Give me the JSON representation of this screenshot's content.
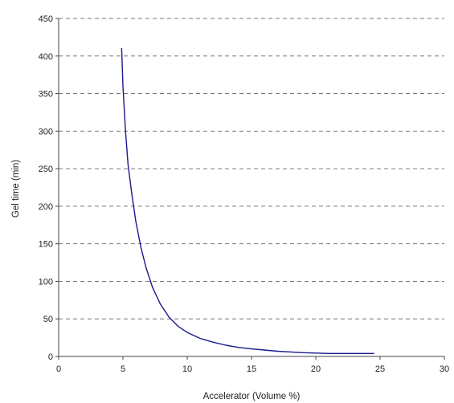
{
  "chart_data": {
    "type": "line",
    "title": "",
    "xlabel": "Accelerator  (Volume %)",
    "ylabel": "Gel time  (min)",
    "xlim": [
      0,
      30
    ],
    "ylim": [
      0,
      450
    ],
    "x_ticks": [
      0,
      5,
      10,
      15,
      20,
      25,
      30
    ],
    "y_ticks": [
      0,
      50,
      100,
      150,
      200,
      250,
      300,
      350,
      400,
      450
    ],
    "x_tick_labels": [
      "0",
      "5",
      "10",
      "15",
      "20",
      "25",
      "30"
    ],
    "y_tick_labels": [
      "0",
      "50",
      "100",
      "150",
      "200",
      "250",
      "300",
      "350",
      "400",
      "450"
    ],
    "grid": "horizontal dashed",
    "legend": "none",
    "series": [
      {
        "color": "#1a1a8c",
        "points": [
          [
            4.9,
            410
          ],
          [
            5.0,
            360
          ],
          [
            5.2,
            300
          ],
          [
            5.4,
            255
          ],
          [
            5.7,
            215
          ],
          [
            6.0,
            180
          ],
          [
            6.4,
            145
          ],
          [
            6.8,
            118
          ],
          [
            7.3,
            92
          ],
          [
            7.9,
            70
          ],
          [
            8.6,
            52
          ],
          [
            9.3,
            40
          ],
          [
            10.0,
            32
          ],
          [
            11.0,
            24
          ],
          [
            12.0,
            19
          ],
          [
            13.0,
            15
          ],
          [
            14.0,
            12
          ],
          [
            15.0,
            10
          ],
          [
            16.0,
            8.5
          ],
          [
            17.0,
            7
          ],
          [
            18.0,
            6
          ],
          [
            19.0,
            5
          ],
          [
            20.0,
            4.5
          ],
          [
            21.0,
            4
          ],
          [
            22.0,
            4
          ],
          [
            23.0,
            4
          ],
          [
            24.5,
            4
          ]
        ]
      }
    ]
  }
}
